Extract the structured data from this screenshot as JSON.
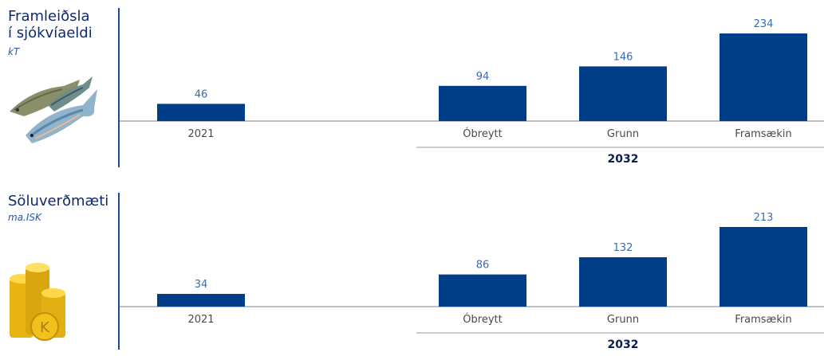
{
  "chart_data": [
    {
      "type": "bar",
      "title": "Framleiðsla\ní sjókvíaeldi",
      "unit": "kT",
      "categories": [
        "2021",
        "Óbreytt",
        "Grunn",
        "Framsækin"
      ],
      "values": [
        46,
        94,
        146,
        234
      ],
      "group_label": "2032",
      "ylim": [
        0,
        250
      ],
      "grid": false,
      "illustration": "fish-icon"
    },
    {
      "type": "bar",
      "title": "Söluverðmæti",
      "unit": "ma.ISK",
      "categories": [
        "2021",
        "Óbreytt",
        "Grunn",
        "Framsækin"
      ],
      "values": [
        34,
        86,
        132,
        213
      ],
      "group_label": "2032",
      "ylim": [
        0,
        230
      ],
      "grid": false,
      "illustration": "coins-icon"
    }
  ],
  "colors": {
    "bar": "#003e8a",
    "title": "#0e2a6b",
    "value_label": "#3a6bb5"
  }
}
